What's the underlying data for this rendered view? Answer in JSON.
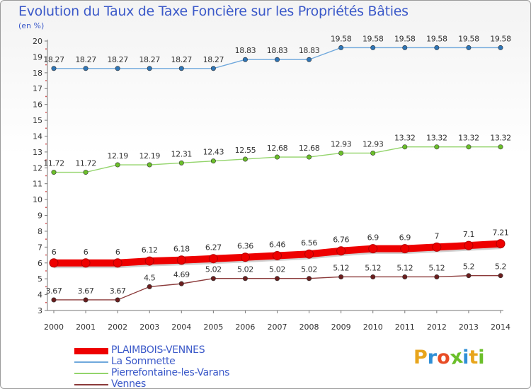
{
  "title": "Evolution du Taux de Taxe Foncière sur les Propriétés Bâties",
  "subtitle": "(en %)",
  "logo": {
    "text": "Proxiti",
    "letter_colors": [
      "#e8a51c",
      "#2f8fd6",
      "#e84c25",
      "#6bbf2a",
      "#2f8fd6",
      "#e8a51c",
      "#6bbf2a"
    ]
  },
  "chart_data": {
    "type": "line",
    "title": "Evolution du Taux de Taxe Foncière sur les Propriétés Bâties",
    "ylabel": "(en %)",
    "xlabel": "",
    "ylim": [
      3,
      20
    ],
    "yticks": [
      3,
      4,
      5,
      6,
      7,
      8,
      9,
      10,
      11,
      12,
      13,
      14,
      15,
      16,
      17,
      18,
      19,
      20
    ],
    "categories": [
      "2000",
      "2001",
      "2002",
      "2003",
      "2004",
      "2005",
      "2006",
      "2007",
      "2008",
      "2009",
      "2010",
      "2011",
      "2012",
      "2013",
      "2014"
    ],
    "grid": false,
    "legend_position": "bottom-left",
    "series": [
      {
        "name": "PLAIMBOIS-VENNES",
        "color": "#ee0000",
        "emphasis": true,
        "values": [
          6,
          6,
          6,
          6.12,
          6.18,
          6.27,
          6.36,
          6.46,
          6.56,
          6.76,
          6.9,
          6.9,
          7,
          7.1,
          7.21
        ],
        "labels": [
          "6",
          "6",
          "6",
          "6.12",
          "6.18",
          "6.27",
          "6.36",
          "6.46",
          "6.56",
          "6.76",
          "6.9",
          "6.9",
          "7",
          "7.1",
          "7.21"
        ]
      },
      {
        "name": "La Sommette",
        "color": "#6fa8dc",
        "marker_color": "#2e75b6",
        "values": [
          18.27,
          18.27,
          18.27,
          18.27,
          18.27,
          18.27,
          18.83,
          18.83,
          18.83,
          19.58,
          19.58,
          19.58,
          19.58,
          19.58,
          19.58
        ],
        "labels": [
          "18.27",
          "18.27",
          "18.27",
          "18.27",
          "18.27",
          "18.27",
          "18.83",
          "18.83",
          "18.83",
          "19.58",
          "19.58",
          "19.58",
          "19.58",
          "19.58",
          "19.58"
        ]
      },
      {
        "name": "Pierrefontaine-les-Varans",
        "color": "#93d46b",
        "marker_color": "#6bbf2a",
        "values": [
          11.72,
          11.72,
          12.19,
          12.19,
          12.31,
          12.43,
          12.55,
          12.68,
          12.68,
          12.93,
          12.93,
          13.32,
          13.32,
          13.32,
          13.32
        ],
        "labels": [
          "11.72",
          "11.72",
          "12.19",
          "12.19",
          "12.31",
          "12.43",
          "12.55",
          "12.68",
          "12.68",
          "12.93",
          "12.93",
          "13.32",
          "13.32",
          "13.32",
          "13.32"
        ]
      },
      {
        "name": "Vennes",
        "color": "#8b3a3a",
        "marker_color": "#6b1e1e",
        "values": [
          3.67,
          3.67,
          3.67,
          4.5,
          4.69,
          5.02,
          5.02,
          5.02,
          5.02,
          5.12,
          5.12,
          5.12,
          5.12,
          5.2,
          5.2
        ],
        "labels": [
          "3.67",
          "3.67",
          "3.67",
          "4.5",
          "4.69",
          "5.02",
          "5.02",
          "5.02",
          "5.02",
          "5.12",
          "5.12",
          "5.12",
          "5.12",
          "5.2",
          "5.2"
        ]
      }
    ]
  }
}
